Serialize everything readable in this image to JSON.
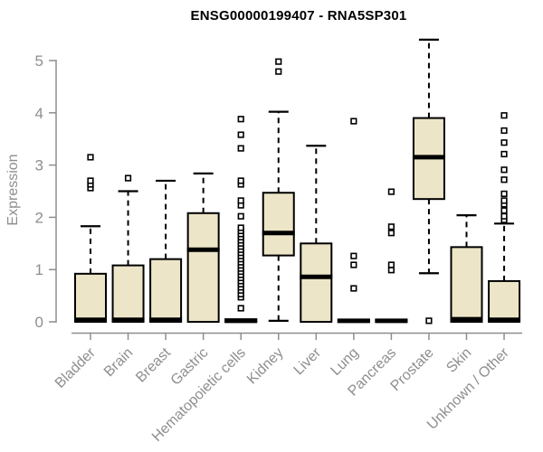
{
  "chart_data": {
    "type": "boxplot",
    "title": "ENSG00000199407 - RNA5SP301",
    "ylabel": "Expression",
    "xlabel": "",
    "ylim": [
      0,
      5
    ],
    "yticks": [
      0,
      1,
      2,
      3,
      4,
      5
    ],
    "grid": "off",
    "legend": "none",
    "colors": {
      "box_fill": "#EDE5C8",
      "box_stroke": "#000000",
      "median": "#000000",
      "whisker": "#000000",
      "outlier_fill": "#ffffff",
      "axis": "#8e8e8e",
      "title": "#000000"
    },
    "categories": [
      "Bladder",
      "Brain",
      "Breast",
      "Gastric",
      "Hematopoietic cells",
      "Kidney",
      "Liver",
      "Lung",
      "Pancreas",
      "Prostate",
      "Skin",
      "Unknown / Other"
    ],
    "series": [
      {
        "name": "Bladder",
        "q1": 0,
        "median": 0.04,
        "q3": 0.92,
        "whisker_low": 0,
        "whisker_high": 1.83,
        "outliers": [
          2.56,
          2.63,
          2.7,
          3.15
        ]
      },
      {
        "name": "Brain",
        "q1": 0,
        "median": 0.04,
        "q3": 1.08,
        "whisker_low": 0,
        "whisker_high": 2.5,
        "outliers": [
          2.75
        ]
      },
      {
        "name": "Breast",
        "q1": 0,
        "median": 0.04,
        "q3": 1.2,
        "whisker_low": 0,
        "whisker_high": 2.7,
        "outliers": []
      },
      {
        "name": "Gastric",
        "q1": 0,
        "median": 1.38,
        "q3": 2.08,
        "whisker_low": 0,
        "whisker_high": 2.84,
        "outliers": []
      },
      {
        "name": "Hematopoietic cells",
        "q1": 0,
        "median": 0.02,
        "q3": 0.05,
        "whisker_low": 0,
        "whisker_high": 0.05,
        "outliers": [
          0.26,
          0.47,
          0.53,
          0.6,
          0.66,
          0.72,
          0.78,
          0.84,
          0.9,
          0.96,
          1.02,
          1.08,
          1.14,
          1.2,
          1.26,
          1.32,
          1.38,
          1.44,
          1.5,
          1.56,
          1.62,
          1.68,
          1.74,
          1.8,
          2.02,
          2.23,
          2.32,
          2.63,
          2.7,
          3.32,
          3.58,
          3.88
        ]
      },
      {
        "name": "Kidney",
        "q1": 1.27,
        "median": 1.7,
        "q3": 2.47,
        "whisker_low": 0.02,
        "whisker_high": 4.02,
        "outliers": [
          4.79,
          4.98
        ]
      },
      {
        "name": "Liver",
        "q1": 0,
        "median": 0.86,
        "q3": 1.5,
        "whisker_low": 0,
        "whisker_high": 3.37,
        "outliers": []
      },
      {
        "name": "Lung",
        "q1": 0,
        "median": 0.02,
        "q3": 0.04,
        "whisker_low": 0,
        "whisker_high": 0.04,
        "outliers": [
          0.64,
          1.09,
          1.26,
          3.84
        ]
      },
      {
        "name": "Pancreas",
        "q1": 0,
        "median": 0.02,
        "q3": 0.04,
        "whisker_low": 0,
        "whisker_high": 0.04,
        "outliers": [
          0.99,
          1.09,
          1.7,
          1.82,
          2.49
        ]
      },
      {
        "name": "Prostate",
        "q1": 2.35,
        "median": 3.15,
        "q3": 3.9,
        "whisker_low": 0.93,
        "whisker_high": 5.4,
        "outliers": [
          0.02
        ]
      },
      {
        "name": "Skin",
        "q1": 0,
        "median": 0.05,
        "q3": 1.43,
        "whisker_low": 0,
        "whisker_high": 2.04,
        "outliers": []
      },
      {
        "name": "Unknown / Other",
        "q1": 0,
        "median": 0.04,
        "q3": 0.78,
        "whisker_low": 0,
        "whisker_high": 1.88,
        "outliers": [
          1.95,
          2.02,
          2.13,
          2.25,
          2.32,
          2.45,
          2.72,
          2.91,
          3.21,
          3.43,
          3.66,
          3.95
        ]
      }
    ]
  }
}
